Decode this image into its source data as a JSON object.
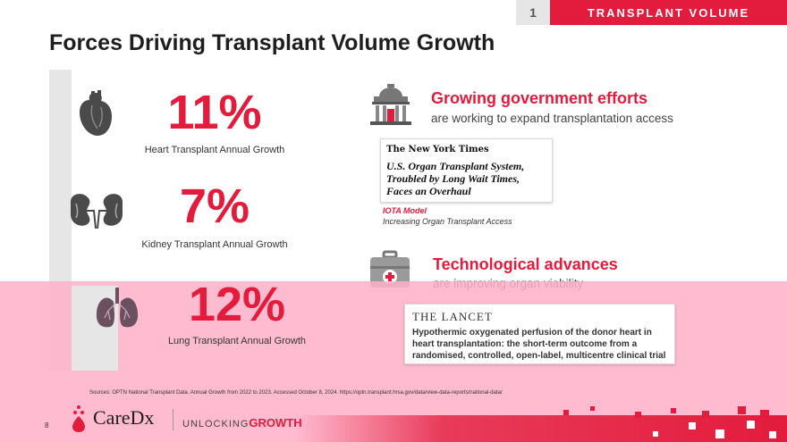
{
  "header": {
    "section_number": "1",
    "section_label": "TRANSPLANT VOLUME"
  },
  "title": "Forces Driving Transplant Volume Growth",
  "stats": [
    {
      "value": "11%",
      "caption": "Heart Transplant Annual Growth",
      "icon": "heart-icon"
    },
    {
      "value": "7%",
      "caption": "Kidney Transplant Annual Growth",
      "icon": "kidneys-icon"
    },
    {
      "value": "12%",
      "caption": "Lung Transplant Annual Growth",
      "icon": "lungs-icon"
    }
  ],
  "government": {
    "heading": "Growing government efforts",
    "subheading": "are working to expand transplantation access",
    "icon": "government-building-icon",
    "article": {
      "masthead": "The New York Times",
      "headline": "U.S. Organ Transplant System, Troubled by Long Wait Times, Faces an Overhaul"
    },
    "iota_label": "IOTA Model",
    "iota_sub": "Increasing Organ Transplant Access"
  },
  "technology": {
    "heading": "Technological advances",
    "subheading": "are improving organ viability",
    "icon": "medical-kit-icon",
    "article": {
      "masthead": "THE LANCET",
      "headline": "Hypothermic oxygenated perfusion of the donor heart in heart transplantation: the short-term outcome from a randomised, controlled, open-label, multicentre clinical trial"
    }
  },
  "sources": "Sources:  OPTN National Transplant Data. Annual Growth from 2022 to 2023. Accessed October 8, 2024. https://optn.transplant.hrsa.gov/data/view-data-reports/national-data/",
  "footer": {
    "page_number": "8",
    "company": "CareDx",
    "tagline_prefix": "UNLOCKING",
    "tagline_emphasis": "GROWTH"
  },
  "colors": {
    "accent": "#e31b3c",
    "gray": "#e6e6e6",
    "pink_overlay": "#ffafc8"
  }
}
